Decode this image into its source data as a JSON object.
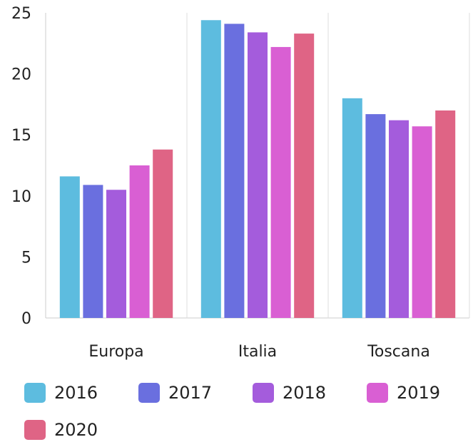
{
  "chart_data": {
    "type": "bar",
    "categories": [
      "Europa",
      "Italia",
      "Toscana"
    ],
    "series": [
      {
        "name": "2016",
        "color": "#5dbcdf",
        "values": [
          11.6,
          24.4,
          18.0
        ]
      },
      {
        "name": "2017",
        "color": "#6a6fdf",
        "values": [
          10.9,
          24.1,
          16.7
        ]
      },
      {
        "name": "2018",
        "color": "#a45cdc",
        "values": [
          10.5,
          23.4,
          16.2
        ]
      },
      {
        "name": "2019",
        "color": "#d95fd3",
        "values": [
          12.5,
          22.2,
          15.7
        ]
      },
      {
        "name": "2020",
        "color": "#df6485",
        "values": [
          13.8,
          23.3,
          17.0
        ]
      }
    ],
    "yticks": [
      "0",
      "5",
      "10",
      "15",
      "20",
      "25"
    ],
    "ylim": [
      0,
      25
    ],
    "title": "",
    "xlabel": "",
    "ylabel": "",
    "grid": "vertical separators between categories",
    "legend_position": "bottom"
  }
}
